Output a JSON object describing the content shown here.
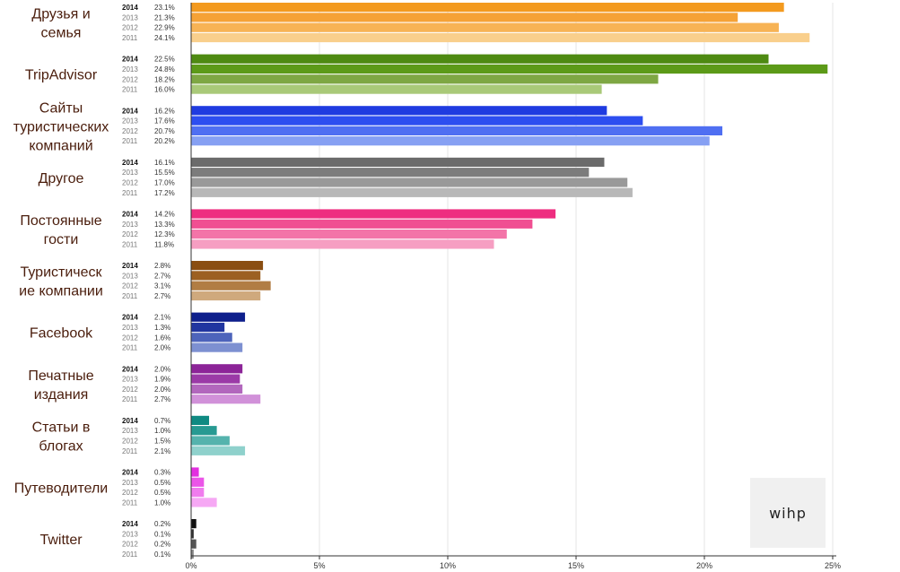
{
  "chart_data": {
    "type": "bar",
    "orientation": "horizontal",
    "title": "",
    "xlabel": "",
    "ylabel": "",
    "xlim": [
      0,
      25
    ],
    "x_ticks": [
      "0%",
      "5%",
      "10%",
      "15%",
      "20%",
      "25%"
    ],
    "years": [
      "2014",
      "2013",
      "2012",
      "2011"
    ],
    "grid": false,
    "legend": "none",
    "categories": [
      {
        "name": "Друзья и\nсемья",
        "colors": [
          "#f39a1f",
          "#f5a236",
          "#f7b355",
          "#f9cf8c"
        ],
        "values": [
          23.1,
          21.3,
          22.9,
          24.1
        ],
        "labels": [
          "23.1%",
          "21.3%",
          "22.9%",
          "24.1%"
        ]
      },
      {
        "name": "TripAdvisor",
        "colors": [
          "#4e8a12",
          "#5c9a18",
          "#7ea743",
          "#a9c978"
        ],
        "values": [
          22.5,
          24.8,
          18.2,
          16.0
        ],
        "labels": [
          "22.5%",
          "24.8%",
          "18.2%",
          "16.0%"
        ]
      },
      {
        "name": "Сайты\nтуристических\nкомпаний",
        "colors": [
          "#1f3be0",
          "#2d4ef0",
          "#4f6ff2",
          "#86a0f3"
        ],
        "values": [
          16.2,
          17.6,
          20.7,
          20.2
        ],
        "labels": [
          "16.2%",
          "17.6%",
          "20.7%",
          "20.2%"
        ]
      },
      {
        "name": "Другое",
        "colors": [
          "#6b6b6b",
          "#7c7c7c",
          "#999999",
          "#b8b8b8"
        ],
        "values": [
          16.1,
          15.5,
          17.0,
          17.2
        ],
        "labels": [
          "16.1%",
          "15.5%",
          "17.0%",
          "17.2%"
        ]
      },
      {
        "name": "Постоянные\nгости",
        "colors": [
          "#ee2d80",
          "#f04f92",
          "#f374a8",
          "#f69ec2"
        ],
        "values": [
          14.2,
          13.3,
          12.3,
          11.8
        ],
        "labels": [
          "14.2%",
          "13.3%",
          "12.3%",
          "11.8%"
        ]
      },
      {
        "name": "Туристическ\nие компании",
        "colors": [
          "#8a4e12",
          "#9c6022",
          "#b17d44",
          "#cfa97d"
        ],
        "values": [
          2.8,
          2.7,
          3.1,
          2.7
        ],
        "labels": [
          "2.8%",
          "2.7%",
          "3.1%",
          "2.7%"
        ]
      },
      {
        "name": "Facebook",
        "colors": [
          "#0e1f8c",
          "#2136a0",
          "#4d64bb",
          "#7d90d1"
        ],
        "values": [
          2.1,
          1.3,
          1.6,
          2.0
        ],
        "labels": [
          "2.1%",
          "1.3%",
          "1.6%",
          "2.0%"
        ]
      },
      {
        "name": "Печатные\nиздания",
        "colors": [
          "#8c2498",
          "#9b3aa7",
          "#b267bd",
          "#d191d9"
        ],
        "values": [
          2.0,
          1.9,
          2.0,
          2.7
        ],
        "labels": [
          "2.0%",
          "1.9%",
          "2.0%",
          "2.7%"
        ]
      },
      {
        "name": "Статьи в\nблогах",
        "colors": [
          "#0f8a82",
          "#279a92",
          "#55b3ad",
          "#8fd1cc"
        ],
        "values": [
          0.7,
          1.0,
          1.5,
          2.1
        ],
        "labels": [
          "0.7%",
          "1.0%",
          "1.5%",
          "2.1%"
        ]
      },
      {
        "name": "Путеводители",
        "colors": [
          "#e32fe0",
          "#eb55e8",
          "#f07cee",
          "#f6a8f4"
        ],
        "values": [
          0.3,
          0.5,
          0.5,
          1.0
        ],
        "labels": [
          "0.3%",
          "0.5%",
          "0.5%",
          "1.0%"
        ]
      },
      {
        "name": "Twitter",
        "colors": [
          "#111111",
          "#333333",
          "#555555",
          "#888888"
        ],
        "values": [
          0.2,
          0.1,
          0.2,
          0.1
        ],
        "labels": [
          "0.2%",
          "0.1%",
          "0.2%",
          "0.1%"
        ]
      }
    ]
  },
  "logo": {
    "text": "wihp"
  }
}
